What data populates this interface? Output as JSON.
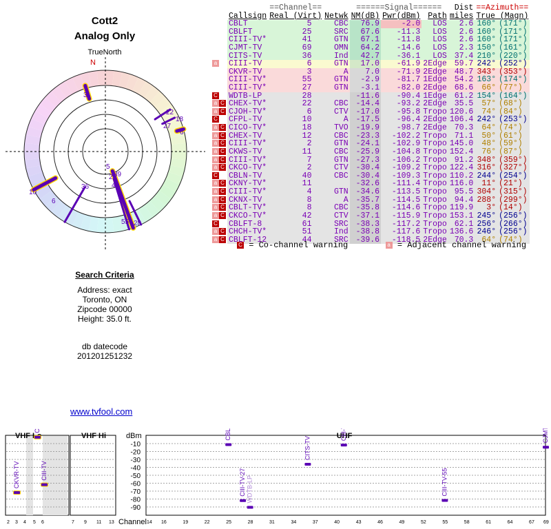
{
  "header": {
    "title": "Cott2",
    "subtitle": "Analog Only"
  },
  "polar": {
    "north_label": "TrueNorth",
    "n_marker": "N",
    "markers": [
      {
        "label": "3",
        "az": 343
      },
      {
        "label": "22",
        "az": 57
      },
      {
        "label": "27",
        "az": 66
      },
      {
        "label": "18",
        "az": 64
      },
      {
        "label": "6",
        "az": 74
      },
      {
        "label": "5",
        "az": 160
      },
      {
        "label": "39",
        "az": 160
      },
      {
        "label": "25",
        "az": 160
      },
      {
        "label": "41",
        "az": 160
      },
      {
        "label": "36",
        "az": 210
      },
      {
        "label": "10",
        "az": 242
      },
      {
        "label": "6",
        "az": 242
      },
      {
        "label": "55",
        "az": 163
      },
      {
        "label": "28",
        "az": 154
      }
    ]
  },
  "table": {
    "group_headers": {
      "channel": "==Channel==",
      "signal": "======Signal======",
      "azimuth": "==Azimuth=="
    },
    "columns": {
      "callsign": "Callsign",
      "real_virt": "Real (Virt)",
      "netwk": "Netwk",
      "nm": "NM(dB)",
      "pwr": "Pwr(dBm)",
      "path": "Path",
      "dist1": "Dist",
      "dist2": "miles",
      "true_magn": "True (Magn)"
    },
    "rows": [
      {
        "warn": "",
        "call": "CBLT",
        "real": "5",
        "netwk": "CBC",
        "nm": "76.9",
        "pwr": "-2.0",
        "path": "LOS",
        "dist": "2.6",
        "true": "160°",
        "magn": "(171°)",
        "bg": "#d8f5d8",
        "az": "#007070"
      },
      {
        "warn": "",
        "call": "CBLFT",
        "real": "25",
        "netwk": "SRC",
        "nm": "67.6",
        "pwr": "-11.3",
        "path": "LOS",
        "dist": "2.6",
        "true": "160°",
        "magn": "(171°)",
        "bg": "#d8f5d8",
        "az": "#007070"
      },
      {
        "warn": "",
        "call": "CIII-TV*",
        "real": "41",
        "netwk": "GTN",
        "nm": "67.1",
        "pwr": "-11.8",
        "path": "LOS",
        "dist": "2.6",
        "true": "160°",
        "magn": "(171°)",
        "bg": "#d8f5d8",
        "az": "#007070"
      },
      {
        "warn": "",
        "call": "CJMT-TV",
        "real": "69",
        "netwk": "OMN",
        "nm": "64.2",
        "pwr": "-14.6",
        "path": "LOS",
        "dist": "2.3",
        "true": "150°",
        "magn": "(161°)",
        "bg": "#d8f5d8",
        "az": "#007070"
      },
      {
        "warn": "",
        "call": "CITS-TV",
        "real": "36",
        "netwk": "Ind",
        "nm": "42.7",
        "pwr": "-36.1",
        "path": "LOS",
        "dist": "37.4",
        "true": "210°",
        "magn": "(220°)",
        "bg": "#d8f5d8",
        "az": "#007070"
      },
      {
        "warn": "a",
        "call": "CIII-TV",
        "real": "6",
        "netwk": "GTN",
        "nm": "17.0",
        "pwr": "-61.9",
        "path": "2Edge",
        "dist": "59.7",
        "true": "242°",
        "magn": "(252°)",
        "bg": "#fafad0",
        "az": "#000090"
      },
      {
        "warn": "",
        "call": "CKVR-TV",
        "real": "3",
        "netwk": "A",
        "nm": "7.0",
        "pwr": "-71.9",
        "path": "2Edge",
        "dist": "48.7",
        "true": "343°",
        "magn": "(353°)",
        "bg": "#fadada",
        "az": "#b00000"
      },
      {
        "warn": "",
        "call": "CIII-TV*",
        "real": "55",
        "netwk": "GTN",
        "nm": "-2.9",
        "pwr": "-81.7",
        "path": "1Edge",
        "dist": "54.2",
        "true": "163°",
        "magn": "(174°)",
        "bg": "#fadada",
        "az": "#007070"
      },
      {
        "warn": "",
        "call": "CIII-TV*",
        "real": "27",
        "netwk": "GTN",
        "nm": "-3.1",
        "pwr": "-82.0",
        "path": "2Edge",
        "dist": "68.6",
        "true": "66°",
        "magn": "(77°)",
        "bg": "#fadada",
        "az": "#b08000"
      },
      {
        "warn": "c",
        "call": "WDTB-LP",
        "real": "28",
        "netwk": "",
        "nm": "-11.6",
        "pwr": "-90.4",
        "path": "1Edge",
        "dist": "61.2",
        "true": "154°",
        "magn": "(164°)",
        "bg": "#e4e4e4",
        "az": "#007070"
      },
      {
        "warn": "ac",
        "call": "CHEX-TV*",
        "real": "22",
        "netwk": "CBC",
        "nm": "-14.4",
        "pwr": "-93.2",
        "path": "2Edge",
        "dist": "35.5",
        "true": "57°",
        "magn": "(68°)",
        "bg": "#e4e4e4",
        "az": "#b08000"
      },
      {
        "warn": "ac",
        "call": "CJOH-TV*",
        "real": "6",
        "netwk": "CTV",
        "nm": "-17.0",
        "pwr": "-95.8",
        "path": "Tropo",
        "dist": "120.6",
        "true": "74°",
        "magn": "(84°)",
        "bg": "#e4e4e4",
        "az": "#b08000"
      },
      {
        "warn": "c",
        "call": "CFPL-TV",
        "real": "10",
        "netwk": "A",
        "nm": "-17.5",
        "pwr": "-96.4",
        "path": "2Edge",
        "dist": "106.4",
        "true": "242°",
        "magn": "(253°)",
        "bg": "#e4e4e4",
        "az": "#000090"
      },
      {
        "warn": "ac",
        "call": "CICO-TV*",
        "real": "18",
        "netwk": "TVO",
        "nm": "-19.9",
        "pwr": "-98.7",
        "path": "2Edge",
        "dist": "70.3",
        "true": "64°",
        "magn": "(74°)",
        "bg": "#e4e4e4",
        "az": "#b08000"
      },
      {
        "warn": "ac",
        "call": "CHEX-TV",
        "real": "12",
        "netwk": "CBC",
        "nm": "-23.3",
        "pwr": "-102.2",
        "path": "Tropo",
        "dist": "71.1",
        "true": "50°",
        "magn": "(61°)",
        "bg": "#e4e4e4",
        "az": "#b08000"
      },
      {
        "warn": "ac",
        "call": "CIII-TV*",
        "real": "2",
        "netwk": "GTN",
        "nm": "-24.1",
        "pwr": "-102.9",
        "path": "Tropo",
        "dist": "145.0",
        "true": "48°",
        "magn": "(59°)",
        "bg": "#e4e4e4",
        "az": "#b08000"
      },
      {
        "warn": "ac",
        "call": "CKWS-TV",
        "real": "11",
        "netwk": "CBC",
        "nm": "-25.9",
        "pwr": "-104.8",
        "path": "Tropo",
        "dist": "152.4",
        "true": "76°",
        "magn": "(87°)",
        "bg": "#e4e4e4",
        "az": "#b08000"
      },
      {
        "warn": "ac",
        "call": "CIII-TV*",
        "real": "7",
        "netwk": "GTN",
        "nm": "-27.3",
        "pwr": "-106.2",
        "path": "Tropo",
        "dist": "91.2",
        "true": "348°",
        "magn": "(359°)",
        "bg": "#e4e4e4",
        "az": "#b00000"
      },
      {
        "warn": "ac",
        "call": "CKCO-TV*",
        "real": "2",
        "netwk": "CTV",
        "nm": "-30.4",
        "pwr": "-109.2",
        "path": "Tropo",
        "dist": "122.4",
        "true": "316°",
        "magn": "(327°)",
        "bg": "#e4e4e4",
        "az": "#b00000"
      },
      {
        "warn": "c",
        "call": "CBLN-TV",
        "real": "40",
        "netwk": "CBC",
        "nm": "-30.4",
        "pwr": "-109.3",
        "path": "Tropo",
        "dist": "110.2",
        "true": "244°",
        "magn": "(254°)",
        "bg": "#e4e4e4",
        "az": "#000090"
      },
      {
        "warn": "ac",
        "call": "CKNY-TV*",
        "real": "11",
        "netwk": "",
        "nm": "-32.6",
        "pwr": "-111.4",
        "path": "Tropo",
        "dist": "116.0",
        "true": "11°",
        "magn": "(21°)",
        "bg": "#e4e4e4",
        "az": "#b00000"
      },
      {
        "warn": "ac",
        "call": "CIII-TV*",
        "real": "4",
        "netwk": "GTN",
        "nm": "-34.6",
        "pwr": "-113.5",
        "path": "Tropo",
        "dist": "95.5",
        "true": "304°",
        "magn": "(315°)",
        "bg": "#e4e4e4",
        "az": "#b00000"
      },
      {
        "warn": "ac",
        "call": "CKNX-TV",
        "real": "8",
        "netwk": "A",
        "nm": "-35.7",
        "pwr": "-114.5",
        "path": "Tropo",
        "dist": "94.4",
        "true": "288°",
        "magn": "(299°)",
        "bg": "#e4e4e4",
        "az": "#b00000"
      },
      {
        "warn": "ac",
        "call": "CBLT-TV*",
        "real": "8",
        "netwk": "CBC",
        "nm": "-35.8",
        "pwr": "-114.6",
        "path": "Tropo",
        "dist": "119.9",
        "true": "3°",
        "magn": "(14°)",
        "bg": "#e4e4e4",
        "az": "#b00000"
      },
      {
        "warn": "ac",
        "call": "CKCO-TV*",
        "real": "42",
        "netwk": "CTV",
        "nm": "-37.1",
        "pwr": "-115.9",
        "path": "Tropo",
        "dist": "153.1",
        "true": "245°",
        "magn": "(256°)",
        "bg": "#e4e4e4",
        "az": "#000090"
      },
      {
        "warn": "c",
        "call": "CBLFT-8",
        "real": "61",
        "netwk": "SRC",
        "nm": "-38.3",
        "pwr": "-117.2",
        "path": "Tropo",
        "dist": "62.1",
        "true": "256°",
        "magn": "(266°)",
        "bg": "#e4e4e4",
        "az": "#000090"
      },
      {
        "warn": "ac",
        "call": "CHCH-TV*",
        "real": "51",
        "netwk": "Ind",
        "nm": "-38.8",
        "pwr": "-117.6",
        "path": "Tropo",
        "dist": "136.6",
        "true": "246°",
        "magn": "(256°)",
        "bg": "#e4e4e4",
        "az": "#000090"
      },
      {
        "warn": "ac",
        "call": "CBLFT-12",
        "real": "44",
        "netwk": "SRC",
        "nm": "-39.6",
        "pwr": "-118.5",
        "path": "2Edge",
        "dist": "70.3",
        "true": "64°",
        "magn": "(74°)",
        "bg": "#e4e4e4",
        "az": "#b08000"
      }
    ]
  },
  "legend": {
    "cochannel_icon": "C",
    "cochannel": "= Co-channel warning",
    "adjacent_icon": "a",
    "adjacent": "= Adjacent channel warning"
  },
  "criteria": {
    "heading": "Search Criteria",
    "address": "Address: exact",
    "city": "Toronto, ON",
    "zipcode": "Zipcode 00000",
    "height": "Height: 35.0 ft.",
    "db_label": "db datecode",
    "db_value": "201201251232"
  },
  "link": {
    "text": "www.tvfool.com"
  },
  "spectrum": {
    "vhf_low_label": "VHF Lo",
    "vhf_hi_label": "VHF Hi",
    "uhf_label": "UHF",
    "dbm_label": "dBm",
    "channel_label": "Channel",
    "y_ticks": [
      "-10",
      "-20",
      "-30",
      "-40",
      "-50",
      "-60",
      "-70",
      "-80",
      "-90"
    ],
    "lo_channels": [
      "2",
      "3",
      "4",
      "5",
      "6"
    ],
    "hi_channels": [
      "7",
      "9",
      "11",
      "13"
    ],
    "uhf_channels": [
      "14",
      "16",
      "19",
      "22",
      "25",
      "28",
      "31",
      "34",
      "37",
      "40",
      "43",
      "46",
      "49",
      "52",
      "55",
      "58",
      "61",
      "64",
      "67",
      "69"
    ],
    "bars": [
      {
        "label": "CKVR-TV",
        "channel": "3",
        "dbm": -71.9
      },
      {
        "label": "CBLT",
        "channel": "5",
        "dbm": -2.0
      },
      {
        "label": "CIII-TV",
        "channel": "6",
        "dbm": -61.9
      },
      {
        "label": "CBLFT",
        "channel": "25",
        "dbm": -11.3
      },
      {
        "label": "CIII-TV-27",
        "channel": "27",
        "dbm": -82.0
      },
      {
        "label": "WDTB-LP",
        "channel": "28",
        "dbm": -90.4
      },
      {
        "label": "CITS-TV",
        "channel": "36",
        "dbm": -36.1
      },
      {
        "label": "CIII-TV-41",
        "channel": "41",
        "dbm": -11.8
      },
      {
        "label": "CIII-TV-55",
        "channel": "55",
        "dbm": -81.7
      },
      {
        "label": "CJMT-TV",
        "channel": "69",
        "dbm": -14.6
      }
    ]
  }
}
